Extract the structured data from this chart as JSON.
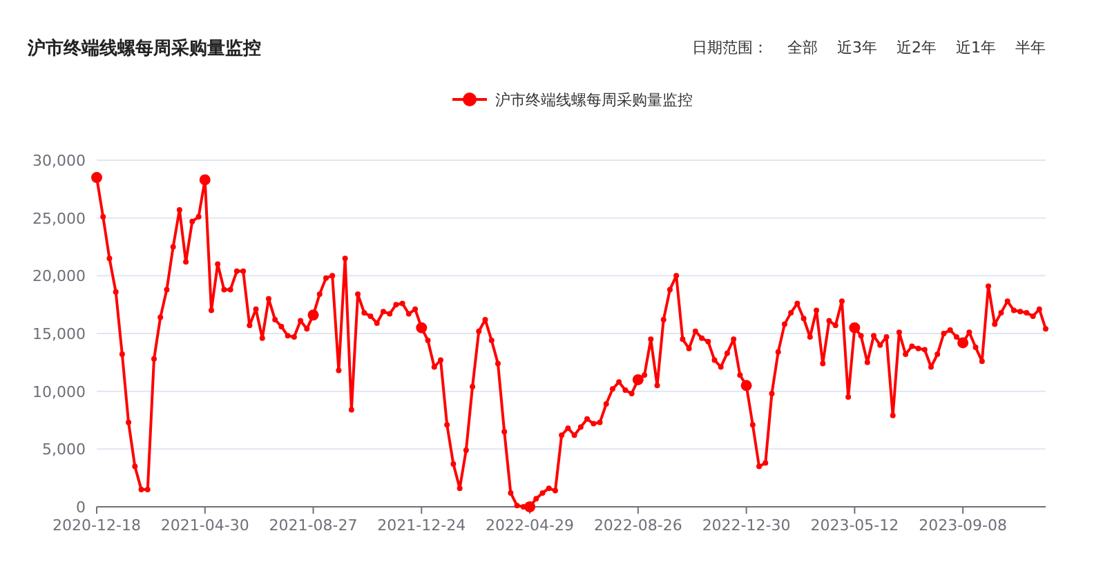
{
  "chart_data": {
    "type": "line",
    "title": "沪市终端线螺每周采购量监控",
    "annotations": [
      "日期范围：",
      "全部",
      "近3年",
      "近2年",
      "近1年",
      "半年"
    ],
    "categories": [
      "2020-12-18",
      null,
      null,
      null,
      null,
      null,
      null,
      null,
      null,
      null,
      null,
      null,
      null,
      null,
      null,
      null,
      null,
      "2021-04-30",
      null,
      null,
      null,
      null,
      null,
      null,
      null,
      null,
      null,
      null,
      null,
      null,
      null,
      null,
      null,
      null,
      "2021-08-27",
      null,
      null,
      null,
      null,
      null,
      null,
      null,
      null,
      null,
      null,
      null,
      null,
      null,
      null,
      null,
      null,
      "2021-12-24",
      null,
      null,
      null,
      null,
      null,
      null,
      null,
      null,
      null,
      null,
      null,
      null,
      null,
      null,
      null,
      null,
      "2022-04-29",
      null,
      null,
      null,
      null,
      null,
      null,
      null,
      null,
      null,
      null,
      null,
      null,
      null,
      null,
      null,
      null,
      "2022-08-26",
      null,
      null,
      null,
      null,
      null,
      null,
      null,
      null,
      null,
      null,
      null,
      null,
      null,
      null,
      null,
      null,
      "2022-12-30",
      null,
      null,
      null,
      null,
      null,
      null,
      null,
      null,
      null,
      null,
      null,
      null,
      null,
      null,
      null,
      null,
      "2023-05-12",
      null,
      null,
      null,
      null,
      null,
      null,
      null,
      null,
      null,
      null,
      null,
      null,
      null,
      null,
      null,
      null,
      "2023-09-08",
      null,
      null,
      null,
      null,
      null,
      null,
      null,
      null,
      null,
      null,
      null,
      null,
      null
    ],
    "series": [
      {
        "name": "沪市终端线螺每周采购量监控",
        "color": "#ff0000",
        "values": [
          28500,
          25100,
          21500,
          18600,
          13200,
          7300,
          3500,
          1500,
          1500,
          12800,
          16400,
          18800,
          22500,
          25700,
          21200,
          24700,
          25100,
          28300,
          17000,
          21000,
          18800,
          18800,
          20400,
          20400,
          15700,
          17100,
          14600,
          18000,
          16200,
          15600,
          14800,
          14700,
          16100,
          15400,
          16600,
          18400,
          19800,
          20000,
          11800,
          21500,
          8400,
          18400,
          16800,
          16500,
          15900,
          16900,
          16700,
          17500,
          17600,
          16700,
          17100,
          15500,
          14400,
          12100,
          12700,
          7100,
          3700,
          1600,
          4900,
          10400,
          15200,
          16200,
          14400,
          12400,
          6500,
          1200,
          100,
          0,
          0,
          700,
          1200,
          1600,
          1400,
          6200,
          6800,
          6200,
          6900,
          7600,
          7200,
          7300,
          8900,
          10200,
          10800,
          10100,
          9800,
          11000,
          11400,
          14500,
          10500,
          16200,
          18800,
          20000,
          14500,
          13700,
          15200,
          14600,
          14300,
          12700,
          12100,
          13300,
          14500,
          11400,
          10500,
          7100,
          3500,
          3800,
          9800,
          13400,
          15800,
          16800,
          17600,
          16300,
          14700,
          17000,
          12400,
          16100,
          15700,
          17800,
          9500,
          15500,
          14800,
          12500,
          14800,
          14000,
          14700,
          7900,
          15100,
          13200,
          13900,
          13700,
          13600,
          12100,
          13200,
          15000,
          15300,
          14700,
          14200,
          15100,
          13800,
          12600,
          19100,
          15800,
          16800,
          17800,
          17000,
          16900,
          16800,
          16500,
          17100,
          15400
        ]
      }
    ],
    "ylim": [
      0,
      30000
    ],
    "yticks": [
      {
        "value": 0,
        "label": "0"
      },
      {
        "value": 5000,
        "label": "5,000"
      },
      {
        "value": 10000,
        "label": "10,000"
      },
      {
        "value": 15000,
        "label": "15,000"
      },
      {
        "value": 20000,
        "label": "20,000"
      },
      {
        "value": 25000,
        "label": "25,000"
      },
      {
        "value": 30000,
        "label": "30,000"
      }
    ],
    "grid": "y",
    "legend": "top",
    "marker": "circle",
    "line_style": "solid"
  }
}
